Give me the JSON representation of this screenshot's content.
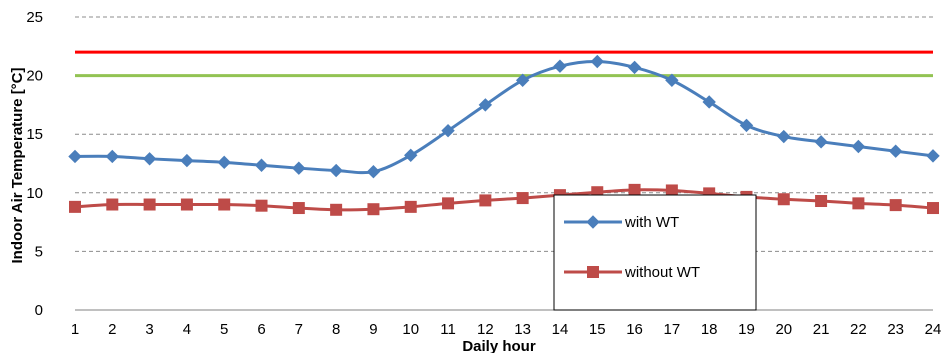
{
  "chart_data": {
    "type": "line",
    "title": "",
    "xlabel": "Daily hour",
    "ylabel": "Indoor Air Temperature [°C]",
    "x": [
      1,
      2,
      3,
      4,
      5,
      6,
      7,
      8,
      9,
      10,
      11,
      12,
      13,
      14,
      15,
      16,
      17,
      18,
      19,
      20,
      21,
      22,
      23,
      24
    ],
    "ylim": [
      0,
      25
    ],
    "yticks": [
      0,
      5,
      10,
      15,
      20,
      25
    ],
    "grid": "horizontal dashed",
    "legend_position": "bottom-center",
    "series": [
      {
        "name": "with WT",
        "color": "#4a7ebb",
        "marker": "diamond",
        "smooth": true,
        "values": [
          13.1,
          13.1,
          12.9,
          12.75,
          12.6,
          12.35,
          12.1,
          11.9,
          11.8,
          13.2,
          15.3,
          17.5,
          19.6,
          20.8,
          21.2,
          20.7,
          19.6,
          17.75,
          15.75,
          14.8,
          14.35,
          13.95,
          13.55,
          13.15
        ]
      },
      {
        "name": "without WT",
        "color": "#be4b48",
        "marker": "square",
        "smooth": true,
        "values": [
          8.8,
          9.0,
          9.0,
          9.0,
          9.0,
          8.9,
          8.7,
          8.55,
          8.6,
          8.8,
          9.1,
          9.35,
          9.55,
          9.8,
          10.05,
          10.25,
          10.2,
          9.95,
          9.65,
          9.45,
          9.3,
          9.1,
          8.95,
          8.7
        ]
      }
    ],
    "reference_lines": [
      {
        "y": 22,
        "color": "#ff0000"
      },
      {
        "y": 20,
        "color": "#92c353"
      }
    ]
  }
}
